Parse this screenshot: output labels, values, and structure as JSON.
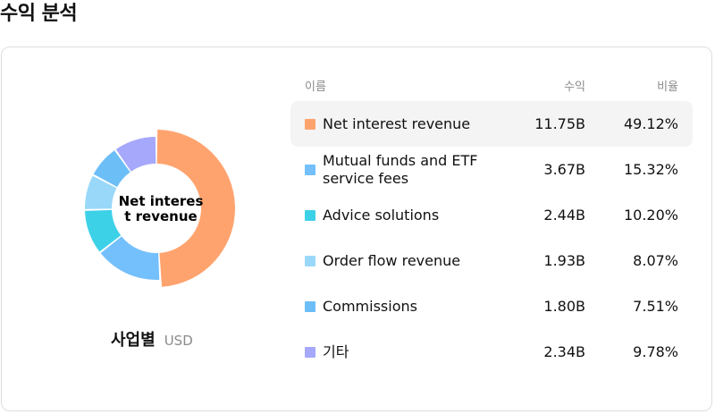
{
  "page": {
    "title": "수익 분석"
  },
  "chart": {
    "center_label": "Net interest revenue",
    "caption_main": "사업별",
    "caption_unit": "USD"
  },
  "table": {
    "headers": {
      "name": "이름",
      "revenue": "수익",
      "ratio": "비율"
    },
    "rows": [
      {
        "name": "Net interest revenue",
        "revenue": "11.75B",
        "ratio": "49.12%",
        "color": "#FFA36E",
        "active": true
      },
      {
        "name": "Mutual funds and ETF service fees",
        "revenue": "3.67B",
        "ratio": "15.32%",
        "color": "#74C0FC",
        "active": false
      },
      {
        "name": "Advice solutions",
        "revenue": "2.44B",
        "ratio": "10.20%",
        "color": "#3DD1E8",
        "active": false
      },
      {
        "name": "Order flow revenue",
        "revenue": "1.93B",
        "ratio": "8.07%",
        "color": "#99D8F9",
        "active": false
      },
      {
        "name": "Commissions",
        "revenue": "1.80B",
        "ratio": "7.51%",
        "color": "#6CBEF7",
        "active": false
      },
      {
        "name": "기타",
        "revenue": "2.34B",
        "ratio": "9.78%",
        "color": "#A5A8FB",
        "active": false
      }
    ]
  },
  "chart_data": {
    "type": "pie",
    "categories": [
      "Net interest revenue",
      "Mutual funds and ETF service fees",
      "Advice solutions",
      "Order flow revenue",
      "Commissions",
      "기타"
    ],
    "values": [
      49.12,
      15.32,
      10.2,
      8.07,
      7.51,
      9.78
    ],
    "colors": [
      "#FFA36E",
      "#74C0FC",
      "#3DD1E8",
      "#99D8F9",
      "#6CBEF7",
      "#A5A8FB"
    ],
    "donut": true,
    "highlighted": "Net interest revenue"
  }
}
